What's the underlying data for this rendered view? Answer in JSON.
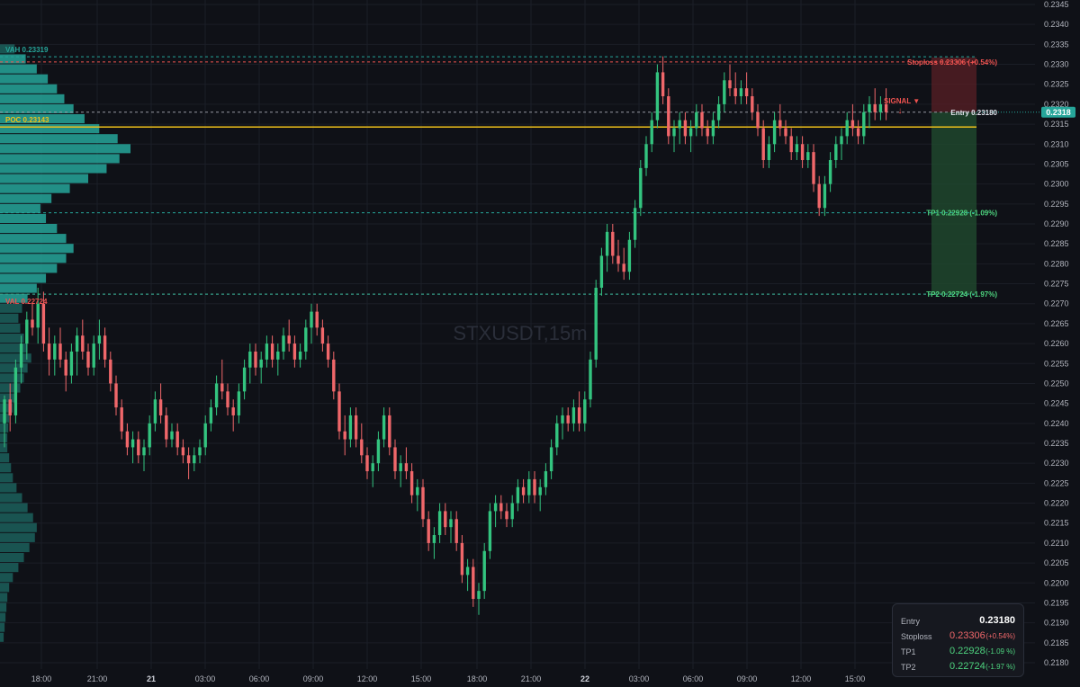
{
  "chart_data": {
    "type": "candlestick",
    "symbol_watermark": "STXUSDT,15m",
    "y_axis": {
      "min": 0.2176,
      "max": 0.2346,
      "tick_step": 0.0005,
      "ticks": [
        "0.2180",
        "0.2185",
        "0.2190",
        "0.2195",
        "0.2200",
        "0.2205",
        "0.2210",
        "0.2215",
        "0.2220",
        "0.2225",
        "0.2230",
        "0.2235",
        "0.2240",
        "0.2245",
        "0.2250",
        "0.2255",
        "0.2260",
        "0.2265",
        "0.2270",
        "0.2275",
        "0.2280",
        "0.2285",
        "0.2290",
        "0.2295",
        "0.2300",
        "0.2305",
        "0.2310",
        "0.2315",
        "0.2320",
        "0.2325",
        "0.2330",
        "0.2335",
        "0.2340",
        "0.2345"
      ]
    },
    "x_axis": {
      "tick_labels": [
        "18:00",
        "21:00",
        "21",
        "03:00",
        "06:00",
        "09:00",
        "12:00",
        "15:00",
        "18:00",
        "21:00",
        "22",
        "03:00",
        "06:00",
        "09:00",
        "12:00",
        "15:00"
      ],
      "bold_labels": [
        "21",
        "22"
      ]
    },
    "current_price": {
      "value": 0.2318,
      "label": "0.2318"
    },
    "levels": [
      {
        "name": "VAH",
        "value": 0.23319,
        "label": "VAH  0.23319",
        "color": "#26a69a"
      },
      {
        "name": "POC",
        "value": 0.23143,
        "label": "POC  0.23143",
        "color": "#f0c11a"
      },
      {
        "name": "VAL",
        "value": 0.22724,
        "label": "VAL  0.22724",
        "color": "#ef5350"
      }
    ],
    "trade": {
      "stoploss": {
        "value": 0.23306,
        "label": "Stoploss 0.23306 (+0.54%)"
      },
      "entry": {
        "value": 0.2318,
        "label": "Entry 0.23180"
      },
      "tp1": {
        "value": 0.22928,
        "label": "TP1 0.22928 (-1.09%)"
      },
      "tp2": {
        "value": 0.22724,
        "label": "TP2 0.22724 (-1.97%)"
      },
      "signal_label": "SIGNAL ▼"
    },
    "volume_profile": {
      "price_low": 0.2185,
      "price_high": 0.2335,
      "rows": 60,
      "values": [
        4,
        5,
        6,
        7,
        8,
        10,
        14,
        20,
        26,
        32,
        38,
        40,
        36,
        30,
        24,
        18,
        14,
        12,
        10,
        8,
        8,
        9,
        10,
        14,
        18,
        22,
        26,
        30,
        34,
        30,
        26,
        22,
        20,
        24,
        30,
        40,
        50,
        62,
        72,
        80,
        72,
        62,
        50,
        44,
        56,
        76,
        96,
        116,
        130,
        142,
        128,
        108,
        92,
        80,
        70,
        62,
        52,
        40,
        28,
        16
      ],
      "color": "#26a69a"
    },
    "candles": [
      [
        0.224,
        0.2247,
        0.2234,
        0.2246
      ],
      [
        0.2246,
        0.225,
        0.2238,
        0.2242
      ],
      [
        0.2242,
        0.2256,
        0.224,
        0.2254
      ],
      [
        0.2254,
        0.2262,
        0.225,
        0.226
      ],
      [
        0.226,
        0.2268,
        0.2256,
        0.2266
      ],
      [
        0.2266,
        0.227,
        0.2262,
        0.2264
      ],
      [
        0.2264,
        0.2274,
        0.226,
        0.227
      ],
      [
        0.227,
        0.2273,
        0.2258,
        0.226
      ],
      [
        0.226,
        0.2264,
        0.2252,
        0.2256
      ],
      [
        0.2256,
        0.2262,
        0.2252,
        0.226
      ],
      [
        0.226,
        0.2264,
        0.2254,
        0.2256
      ],
      [
        0.2256,
        0.2258,
        0.2248,
        0.2252
      ],
      [
        0.2252,
        0.226,
        0.225,
        0.2258
      ],
      [
        0.2258,
        0.2264,
        0.2252,
        0.2262
      ],
      [
        0.2262,
        0.2266,
        0.2256,
        0.2258
      ],
      [
        0.2258,
        0.226,
        0.2252,
        0.2254
      ],
      [
        0.2254,
        0.2262,
        0.2252,
        0.226
      ],
      [
        0.226,
        0.2266,
        0.2256,
        0.2262
      ],
      [
        0.2262,
        0.2264,
        0.2254,
        0.2256
      ],
      [
        0.2256,
        0.2258,
        0.2248,
        0.225
      ],
      [
        0.225,
        0.2252,
        0.2242,
        0.2244
      ],
      [
        0.2244,
        0.2246,
        0.2236,
        0.2238
      ],
      [
        0.2238,
        0.224,
        0.2232,
        0.2234
      ],
      [
        0.2234,
        0.2238,
        0.223,
        0.2236
      ],
      [
        0.2236,
        0.2238,
        0.223,
        0.2232
      ],
      [
        0.2232,
        0.2236,
        0.2228,
        0.2234
      ],
      [
        0.2234,
        0.2242,
        0.2232,
        0.224
      ],
      [
        0.224,
        0.2248,
        0.2238,
        0.2246
      ],
      [
        0.2246,
        0.225,
        0.224,
        0.2242
      ],
      [
        0.2242,
        0.2244,
        0.2234,
        0.2236
      ],
      [
        0.2236,
        0.224,
        0.2234,
        0.2238
      ],
      [
        0.2238,
        0.224,
        0.2232,
        0.2234
      ],
      [
        0.2234,
        0.2236,
        0.223,
        0.2232
      ],
      [
        0.2232,
        0.2234,
        0.2226,
        0.223
      ],
      [
        0.223,
        0.2234,
        0.2228,
        0.2232
      ],
      [
        0.2232,
        0.2236,
        0.223,
        0.2234
      ],
      [
        0.2234,
        0.2242,
        0.2232,
        0.224
      ],
      [
        0.224,
        0.2246,
        0.2238,
        0.2244
      ],
      [
        0.2244,
        0.2252,
        0.2242,
        0.225
      ],
      [
        0.225,
        0.2256,
        0.2246,
        0.2248
      ],
      [
        0.2248,
        0.225,
        0.2242,
        0.2244
      ],
      [
        0.2244,
        0.2246,
        0.2238,
        0.2242
      ],
      [
        0.2242,
        0.225,
        0.224,
        0.2248
      ],
      [
        0.2248,
        0.2256,
        0.2246,
        0.2254
      ],
      [
        0.2254,
        0.226,
        0.225,
        0.2258
      ],
      [
        0.2258,
        0.226,
        0.2252,
        0.2254
      ],
      [
        0.2254,
        0.2258,
        0.225,
        0.2256
      ],
      [
        0.2256,
        0.2262,
        0.2254,
        0.226
      ],
      [
        0.226,
        0.2262,
        0.2254,
        0.2256
      ],
      [
        0.2256,
        0.226,
        0.2252,
        0.2258
      ],
      [
        0.2258,
        0.2264,
        0.2256,
        0.2262
      ],
      [
        0.2262,
        0.2266,
        0.2258,
        0.226
      ],
      [
        0.226,
        0.2262,
        0.2254,
        0.2256
      ],
      [
        0.2256,
        0.226,
        0.2254,
        0.2258
      ],
      [
        0.2258,
        0.2266,
        0.2256,
        0.2264
      ],
      [
        0.2264,
        0.227,
        0.226,
        0.2268
      ],
      [
        0.2268,
        0.227,
        0.2262,
        0.2264
      ],
      [
        0.2264,
        0.2266,
        0.2258,
        0.226
      ],
      [
        0.226,
        0.2262,
        0.2254,
        0.2256
      ],
      [
        0.2256,
        0.2258,
        0.2246,
        0.2248
      ],
      [
        0.2248,
        0.225,
        0.2236,
        0.2238
      ],
      [
        0.2238,
        0.2242,
        0.2232,
        0.2236
      ],
      [
        0.2236,
        0.2244,
        0.2234,
        0.2242
      ],
      [
        0.2242,
        0.2244,
        0.2234,
        0.2236
      ],
      [
        0.2236,
        0.224,
        0.223,
        0.2232
      ],
      [
        0.2232,
        0.2234,
        0.2226,
        0.2228
      ],
      [
        0.2228,
        0.2232,
        0.2224,
        0.223
      ],
      [
        0.223,
        0.2238,
        0.2228,
        0.2236
      ],
      [
        0.2236,
        0.2244,
        0.2234,
        0.2242
      ],
      [
        0.2242,
        0.2244,
        0.2232,
        0.2234
      ],
      [
        0.2234,
        0.2236,
        0.2226,
        0.2228
      ],
      [
        0.2228,
        0.2232,
        0.2224,
        0.223
      ],
      [
        0.223,
        0.2234,
        0.2226,
        0.2228
      ],
      [
        0.2228,
        0.223,
        0.222,
        0.2222
      ],
      [
        0.2222,
        0.2226,
        0.2218,
        0.2224
      ],
      [
        0.2224,
        0.2226,
        0.2214,
        0.2216
      ],
      [
        0.2216,
        0.2218,
        0.2208,
        0.221
      ],
      [
        0.221,
        0.2214,
        0.2206,
        0.2212
      ],
      [
        0.2212,
        0.222,
        0.221,
        0.2218
      ],
      [
        0.2218,
        0.222,
        0.2212,
        0.2214
      ],
      [
        0.2214,
        0.2218,
        0.221,
        0.2216
      ],
      [
        0.2216,
        0.2218,
        0.2208,
        0.221
      ],
      [
        0.221,
        0.2212,
        0.22,
        0.2202
      ],
      [
        0.2202,
        0.2206,
        0.2198,
        0.2204
      ],
      [
        0.2204,
        0.2206,
        0.2194,
        0.2196
      ],
      [
        0.2196,
        0.22,
        0.2192,
        0.2198
      ],
      [
        0.2198,
        0.221,
        0.2196,
        0.2208
      ],
      [
        0.2208,
        0.222,
        0.2206,
        0.2218
      ],
      [
        0.2218,
        0.2222,
        0.2214,
        0.222
      ],
      [
        0.222,
        0.2222,
        0.2216,
        0.2218
      ],
      [
        0.2218,
        0.222,
        0.2214,
        0.2216
      ],
      [
        0.2216,
        0.2222,
        0.2214,
        0.222
      ],
      [
        0.222,
        0.2226,
        0.2218,
        0.2224
      ],
      [
        0.2224,
        0.2226,
        0.222,
        0.2222
      ],
      [
        0.2222,
        0.2228,
        0.222,
        0.2226
      ],
      [
        0.2226,
        0.2228,
        0.222,
        0.2222
      ],
      [
        0.2222,
        0.2226,
        0.2218,
        0.2224
      ],
      [
        0.2224,
        0.223,
        0.2222,
        0.2228
      ],
      [
        0.2228,
        0.2236,
        0.2226,
        0.2234
      ],
      [
        0.2234,
        0.2242,
        0.2232,
        0.224
      ],
      [
        0.224,
        0.2244,
        0.2236,
        0.2242
      ],
      [
        0.2242,
        0.2244,
        0.2238,
        0.224
      ],
      [
        0.224,
        0.2246,
        0.2238,
        0.2244
      ],
      [
        0.2244,
        0.2248,
        0.2238,
        0.224
      ],
      [
        0.224,
        0.2248,
        0.2238,
        0.2246
      ],
      [
        0.2246,
        0.2258,
        0.2244,
        0.2256
      ],
      [
        0.2256,
        0.2276,
        0.2254,
        0.2274
      ],
      [
        0.2274,
        0.2284,
        0.2272,
        0.2282
      ],
      [
        0.2282,
        0.229,
        0.2278,
        0.2288
      ],
      [
        0.2288,
        0.229,
        0.228,
        0.2282
      ],
      [
        0.2282,
        0.2286,
        0.2278,
        0.228
      ],
      [
        0.228,
        0.2284,
        0.2276,
        0.2278
      ],
      [
        0.2278,
        0.2288,
        0.2276,
        0.2286
      ],
      [
        0.2286,
        0.2296,
        0.2284,
        0.2294
      ],
      [
        0.2294,
        0.2306,
        0.2292,
        0.2304
      ],
      [
        0.2304,
        0.2312,
        0.2302,
        0.231
      ],
      [
        0.231,
        0.2318,
        0.2308,
        0.2316
      ],
      [
        0.2316,
        0.233,
        0.2314,
        0.2328
      ],
      [
        0.2328,
        0.2332,
        0.232,
        0.2322
      ],
      [
        0.2322,
        0.2324,
        0.231,
        0.2312
      ],
      [
        0.2312,
        0.2316,
        0.2308,
        0.2314
      ],
      [
        0.2314,
        0.2318,
        0.231,
        0.2316
      ],
      [
        0.2316,
        0.2318,
        0.231,
        0.2312
      ],
      [
        0.2312,
        0.2316,
        0.2308,
        0.2314
      ],
      [
        0.2314,
        0.232,
        0.2312,
        0.2318
      ],
      [
        0.2318,
        0.232,
        0.2312,
        0.2314
      ],
      [
        0.2314,
        0.2316,
        0.231,
        0.2312
      ],
      [
        0.2312,
        0.2318,
        0.231,
        0.2316
      ],
      [
        0.2316,
        0.2322,
        0.2314,
        0.232
      ],
      [
        0.232,
        0.2328,
        0.2318,
        0.2326
      ],
      [
        0.2326,
        0.233,
        0.2322,
        0.2324
      ],
      [
        0.2324,
        0.2328,
        0.232,
        0.2322
      ],
      [
        0.2322,
        0.2326,
        0.232,
        0.2324
      ],
      [
        0.2324,
        0.2328,
        0.232,
        0.2322
      ],
      [
        0.2322,
        0.2324,
        0.2316,
        0.2318
      ],
      [
        0.2318,
        0.232,
        0.2312,
        0.2314
      ],
      [
        0.2314,
        0.2316,
        0.2304,
        0.2306
      ],
      [
        0.2306,
        0.2312,
        0.2304,
        0.231
      ],
      [
        0.231,
        0.2318,
        0.2308,
        0.2316
      ],
      [
        0.2316,
        0.232,
        0.2312,
        0.2314
      ],
      [
        0.2314,
        0.2316,
        0.231,
        0.2312
      ],
      [
        0.2312,
        0.2314,
        0.2306,
        0.2308
      ],
      [
        0.2308,
        0.2312,
        0.2306,
        0.231
      ],
      [
        0.231,
        0.2312,
        0.2304,
        0.2306
      ],
      [
        0.2306,
        0.231,
        0.2304,
        0.2308
      ],
      [
        0.2308,
        0.231,
        0.2298,
        0.23
      ],
      [
        0.23,
        0.2302,
        0.2292,
        0.2294
      ],
      [
        0.2294,
        0.2302,
        0.2292,
        0.23
      ],
      [
        0.23,
        0.2308,
        0.2298,
        0.2306
      ],
      [
        0.2306,
        0.2312,
        0.2304,
        0.231
      ],
      [
        0.231,
        0.2314,
        0.2306,
        0.2312
      ],
      [
        0.2312,
        0.2318,
        0.231,
        0.2316
      ],
      [
        0.2316,
        0.232,
        0.2312,
        0.2314
      ],
      [
        0.2314,
        0.2316,
        0.231,
        0.2312
      ],
      [
        0.2312,
        0.232,
        0.231,
        0.2318
      ],
      [
        0.2318,
        0.2322,
        0.2314,
        0.232
      ],
      [
        0.232,
        0.2324,
        0.2316,
        0.2318
      ],
      [
        0.2318,
        0.2322,
        0.2316,
        0.232
      ],
      [
        0.232,
        0.2324,
        0.2316,
        0.2318
      ]
    ]
  },
  "info_panel": {
    "rows": [
      {
        "label": "Entry",
        "value": "0.23180",
        "pct": ""
      },
      {
        "label": "Stoploss",
        "value": "0.23306",
        "pct": "(+0.54%)"
      },
      {
        "label": "TP1",
        "value": "0.22928",
        "pct": "(-1.09 %)"
      },
      {
        "label": "TP2",
        "value": "0.22724",
        "pct": "(-1.97 %)"
      }
    ]
  },
  "colors": {
    "background": "#0f1117",
    "up": "#26a69a",
    "down": "#ef5350",
    "up_candle": "#33c47f",
    "down_candle": "#f0676a",
    "poc": "#f0c11a",
    "grid": "#1b1e27",
    "axis_text": "#b2b5be",
    "current_price_bg": "#26a69a"
  }
}
